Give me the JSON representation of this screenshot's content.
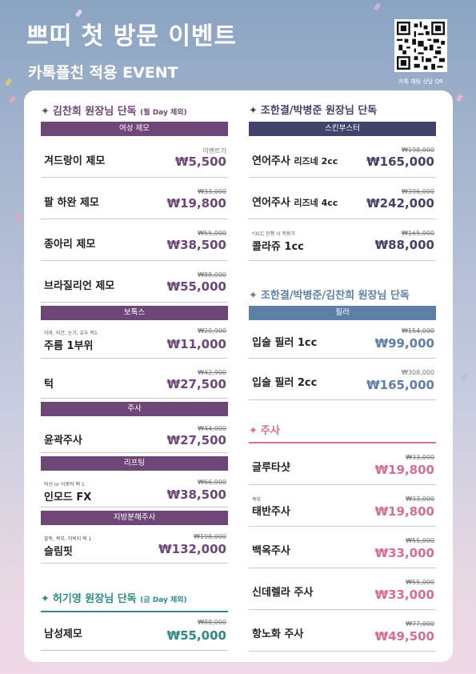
{
  "header": {
    "title": "쁘띠 첫 방문 이벤트",
    "subtitle": "카톡플친 적용 EVENT",
    "qr_caption": "카톡 채팅 상담 QR"
  },
  "colors": {
    "purple": "#6e4678",
    "navy": "#42436a",
    "blue": "#5e7fa6",
    "pink": "#d66d92",
    "teal": "#2e8a84"
  },
  "left": {
    "kim": {
      "star": "✦",
      "title": "김찬희 원장님 단독",
      "note": "(월 Day 제외)",
      "groups": [
        {
          "label": "여성 제모",
          "items": [
            {
              "name": "겨드랑이 제모",
              "old": "이벤트가",
              "old_plain": true,
              "price": "₩5,500"
            },
            {
              "name": "팔 하완 제모",
              "old": "₩33,000",
              "price": "₩19,800"
            },
            {
              "name": "종아리 제모",
              "old": "₩55,000",
              "price": "₩38,500"
            },
            {
              "name": "브라질리언 제모",
              "old": "₩88,000",
              "price": "₩55,000"
            }
          ]
        },
        {
          "label": "보톡스",
          "items": [
            {
              "pre": "이마, 미간, 눈가, 호두 택1",
              "name": "주름 1부위",
              "old": "₩20,900",
              "price": "₩11,000"
            },
            {
              "name": "턱",
              "old": "₩42,900",
              "price": "₩27,500"
            }
          ]
        },
        {
          "label": "주사",
          "items": [
            {
              "name": "윤곽주사",
              "old": "₩44,000",
              "price": "₩27,500"
            }
          ]
        },
        {
          "label": "리프팅",
          "items": [
            {
              "pre": "턱선 or 이중턱 택 1",
              "name": "인모드 FX",
              "old": "₩66,000",
              "price": "₩38,500"
            }
          ]
        },
        {
          "label": "지방분해주사",
          "items": [
            {
              "pre": "팔뚝, 복부, 허벅지 택 1",
              "name": "슬림핏",
              "old": "₩198,000",
              "price": "₩132,000"
            }
          ]
        }
      ]
    },
    "heo": {
      "star": "✦",
      "title": "허기영 원장님 단독",
      "note": "(금 Day 제외)",
      "items": [
        {
          "name": "남성제모",
          "old": "₩88,000",
          "price": "₩55,000"
        }
      ]
    }
  },
  "right": {
    "cho": {
      "star": "✦",
      "title": "조한결/박병준 원장님 단독",
      "bar": "스킨부스터",
      "items": [
        {
          "name": "연어주사",
          "small": "리즈네 2cc",
          "old": "₩198,000",
          "price": "₩165,000"
        },
        {
          "name": "연어주사",
          "small": "리즈네 4cc",
          "old": "₩396,000",
          "price": "₩242,000"
        },
        {
          "pre": "*3CC 진행 시 적용가",
          "name": "콜라쥬 1cc",
          "old": "₩165,000",
          "price": "₩88,000"
        }
      ]
    },
    "filler": {
      "star": "✦",
      "title": "조한결/박병준/김찬희 원장님 단독",
      "bar": "필러",
      "items": [
        {
          "name": "입술 필러 1cc",
          "old": "₩154,000",
          "price": "₩99,000"
        },
        {
          "name": "입술 필러 2cc",
          "old": "₩308,000",
          "old_plain": true,
          "price": "₩165,000"
        }
      ]
    },
    "inj": {
      "star": "✦",
      "title": "주사",
      "items": [
        {
          "name": "글루타샷",
          "old": "₩33,000",
          "price": "₩19,800"
        },
        {
          "pre": "복부",
          "name": "태반주사",
          "old": "₩33,000",
          "price": "₩19,800"
        },
        {
          "name": "백옥주사",
          "old": "₩55,000",
          "price": "₩33,000"
        },
        {
          "name": "신데렐라 주사",
          "old": "₩55,000",
          "price": "₩33,000"
        },
        {
          "name": "항노화 주사",
          "old": "₩77,000",
          "price": "₩49,500"
        }
      ]
    }
  }
}
